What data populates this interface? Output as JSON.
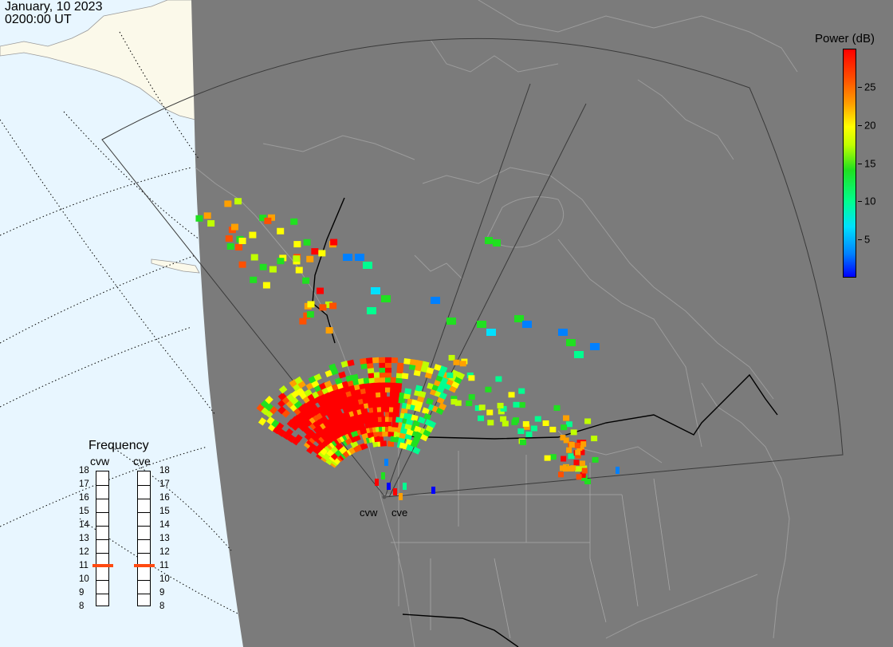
{
  "header": {
    "date": "January, 10 2023",
    "time": "0200:00 UT"
  },
  "legend": {
    "title": "Power (dB)",
    "ticks": [
      {
        "label": "25",
        "value": 25
      },
      {
        "label": "20",
        "value": 20
      },
      {
        "label": "15",
        "value": 15
      },
      {
        "label": "10",
        "value": 10
      },
      {
        "label": "5",
        "value": 5
      }
    ],
    "range": [
      0,
      30
    ],
    "colors": [
      "#0000ff",
      "#0080ff",
      "#00e0ff",
      "#00ff90",
      "#20e020",
      "#c0ff00",
      "#ffff00",
      "#ffa000",
      "#ff5000",
      "#ff0000"
    ]
  },
  "frequency": {
    "title": "Frequency",
    "radars": [
      {
        "name": "cvw",
        "selected": 11
      },
      {
        "name": "cve",
        "selected": 11
      }
    ],
    "scale": [
      "18",
      "17",
      "16",
      "15",
      "14",
      "13",
      "12",
      "11",
      "10",
      "9",
      "8"
    ],
    "marker_color": "#ff4a10"
  },
  "radar_sites": {
    "west_label": "cvw",
    "east_label": "cve"
  },
  "map_colors": {
    "ocean_day": "#e8f6ff",
    "land_day": "#fbf9ea",
    "night": "#7b7b7b",
    "coast_night": "#a0a0a0",
    "border": "#000000"
  }
}
